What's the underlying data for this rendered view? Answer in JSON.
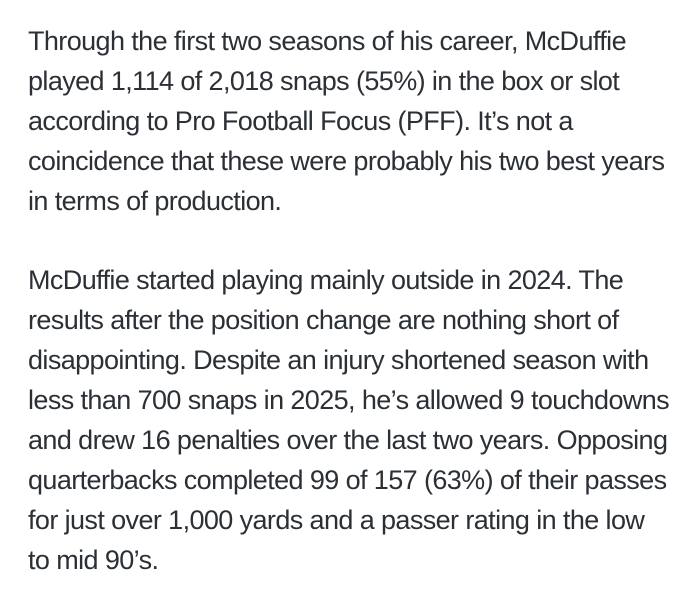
{
  "page": {
    "background_color": "#ffffff",
    "text_color": "#2b3036"
  },
  "article": {
    "paragraphs": [
      {
        "text": "Through the first two seasons of his career, McDuffie\nplayed 1,114 of 2,018 snaps (55%) in the box or slot\naccording to Pro Football Focus (PFF). It’s not a\ncoincidence that these were probably his two best years\nin terms of production."
      },
      {
        "text": "McDuffie started playing mainly outside in 2024. The\nresults after the position change are nothing short of\ndisappointing. Despite an injury shortened season with\nless than 700 snaps in 2025, he’s allowed 9 touchdowns\nand drew 16 penalties over the last two years. Opposing\nquarterbacks completed 99 of 157 (63%) of their passes\nfor just over 1,000 yards and a passer rating in the low\nto mid 90’s."
      }
    ]
  }
}
